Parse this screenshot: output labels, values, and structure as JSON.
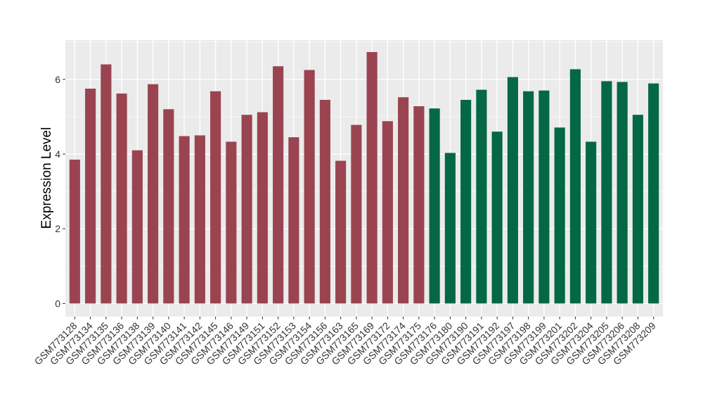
{
  "chart_data": {
    "type": "bar",
    "ylabel": "Expression Level",
    "xlabel": "",
    "ylim": [
      -0.35,
      7.05
    ],
    "yticks": [
      0,
      2,
      4,
      6
    ],
    "grid": true,
    "colors": {
      "group_1": "#9a4451",
      "group_2": "#046844",
      "panel": "#ebebeb",
      "grid": "#ffffff"
    },
    "categories": [
      "GSM773128",
      "GSM773134",
      "GSM773135",
      "GSM773136",
      "GSM773138",
      "GSM773139",
      "GSM773140",
      "GSM773141",
      "GSM773142",
      "GSM773145",
      "GSM773146",
      "GSM773149",
      "GSM773151",
      "GSM773152",
      "GSM773153",
      "GSM773154",
      "GSM773156",
      "GSM773163",
      "GSM773165",
      "GSM773169",
      "GSM773172",
      "GSM773174",
      "GSM773175",
      "GSM773176",
      "GSM773180",
      "GSM773190",
      "GSM773191",
      "GSM773192",
      "GSM773197",
      "GSM773198",
      "GSM773199",
      "GSM773201",
      "GSM773202",
      "GSM773204",
      "GSM773205",
      "GSM773206",
      "GSM773208",
      "GSM773209"
    ],
    "values": [
      3.85,
      5.75,
      6.4,
      5.62,
      4.1,
      5.87,
      5.2,
      4.48,
      4.5,
      5.68,
      4.33,
      5.05,
      5.12,
      6.35,
      4.45,
      6.25,
      5.45,
      3.82,
      4.78,
      6.73,
      4.88,
      5.52,
      5.28,
      5.22,
      4.03,
      5.45,
      5.72,
      4.6,
      6.06,
      5.68,
      5.7,
      4.71,
      6.27,
      4.33,
      5.95,
      5.93,
      5.05,
      5.89
    ],
    "groups": [
      1,
      1,
      1,
      1,
      1,
      1,
      1,
      1,
      1,
      1,
      1,
      1,
      1,
      1,
      1,
      1,
      1,
      1,
      1,
      1,
      1,
      1,
      1,
      2,
      2,
      2,
      2,
      2,
      2,
      2,
      2,
      2,
      2,
      2,
      2,
      2,
      2,
      2
    ]
  }
}
